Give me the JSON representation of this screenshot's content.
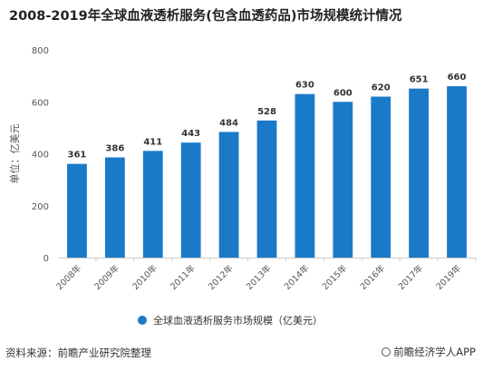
{
  "header": {
    "title": "2008-2019年全球血液透析服务(包含血透药品)市场规模统计情况"
  },
  "footer": {
    "source": "资料来源：前瞻产业研究院整理",
    "brand": "前瞻经济学人APP"
  },
  "chart_data": {
    "type": "bar",
    "title": "2008-2019年全球血液透析服务(包含血透药品)市场规模统计情况",
    "xlabel": "",
    "ylabel": "单位：亿美元",
    "ylim": [
      0,
      800
    ],
    "yticks": [
      0,
      200,
      400,
      600,
      800
    ],
    "grid": false,
    "legend_position": "bottom",
    "categories": [
      "2008年",
      "2009年",
      "2010年",
      "2011年",
      "2012年",
      "2013年",
      "2014年",
      "2015年",
      "2016年",
      "2017年",
      "2019年"
    ],
    "series": [
      {
        "name": "全球血液透析服务市场规模（亿美元）",
        "color": "#1a7ac8",
        "values": [
          361,
          386,
          411,
          443,
          484,
          528,
          630,
          600,
          620,
          651,
          660
        ]
      }
    ]
  }
}
